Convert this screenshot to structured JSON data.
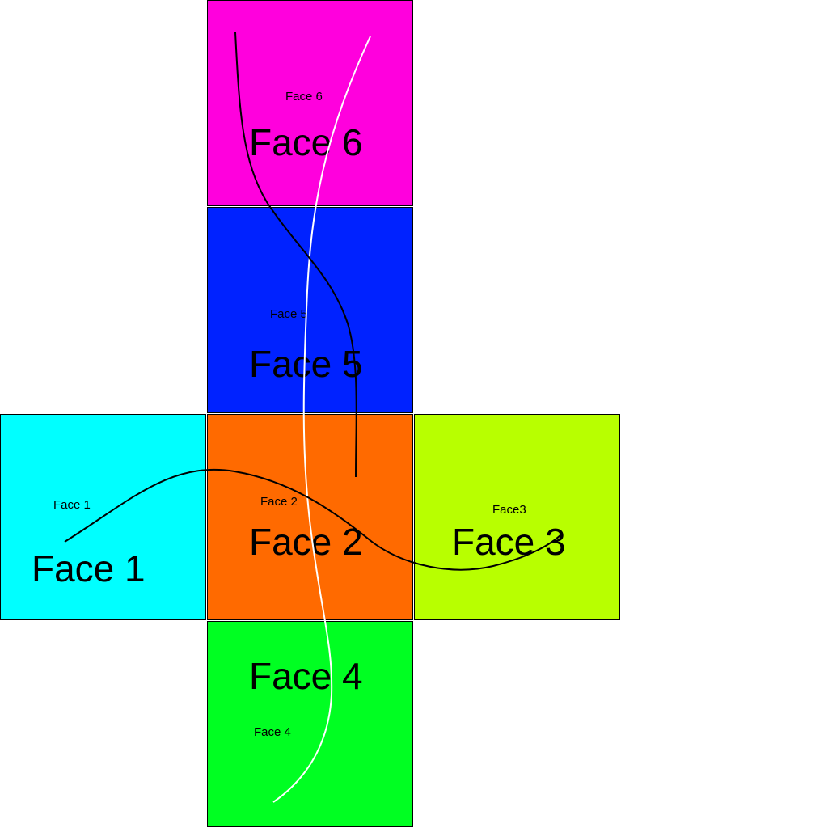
{
  "faces": [
    {
      "id": "f6",
      "small_label": "Face 6",
      "big_label": "Face 6",
      "color": "#ff00dd"
    },
    {
      "id": "f5",
      "small_label": "Face 5",
      "big_label": "Face 5",
      "color": "#0022ff"
    },
    {
      "id": "f1",
      "small_label": "Face 1",
      "big_label": "Face 1",
      "color": "#00ffff"
    },
    {
      "id": "f2",
      "small_label": "Face 2",
      "big_label": "Face 2",
      "color": "#ff6a00"
    },
    {
      "id": "f3",
      "small_label": "Face3",
      "big_label": "Face 3",
      "color": "#b8ff00"
    },
    {
      "id": "f4",
      "small_label": "Face 4",
      "big_label": "Face 4",
      "color": "#00ff22"
    }
  ],
  "curves": {
    "black_color": "#000000",
    "white_color": "#ffffff"
  }
}
